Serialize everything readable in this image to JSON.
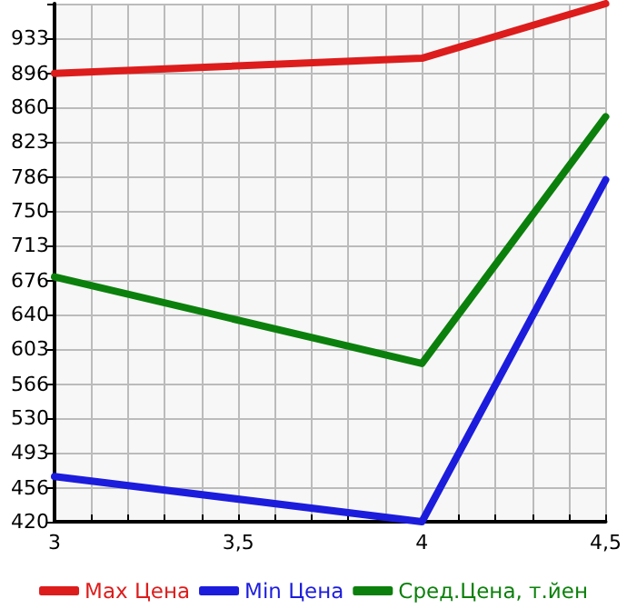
{
  "chart_data": {
    "type": "line",
    "x": [
      3,
      4,
      4.5
    ],
    "series": [
      {
        "name": "Max Цена",
        "color": "#dd1c1c",
        "values": [
          896,
          912,
          970
        ]
      },
      {
        "name": "Min Цена",
        "color": "#1c1cdd",
        "values": [
          468,
          420,
          783
        ]
      },
      {
        "name": "Сред.Цена, т.йен",
        "color": "#0c800c",
        "values": [
          680,
          588,
          850
        ]
      }
    ],
    "xlim": [
      3,
      4.5
    ],
    "xticks": [
      3,
      {
        "value": 3.1,
        "label": null
      },
      {
        "value": 3.2,
        "label": null
      },
      {
        "value": 3.3,
        "label": null
      },
      {
        "value": 3.4,
        "label": null
      },
      {
        "value": 3.5,
        "label": "3,5"
      },
      {
        "value": 3.6,
        "label": null
      },
      {
        "value": 3.7,
        "label": null
      },
      {
        "value": 3.8,
        "label": null
      },
      {
        "value": 3.9,
        "label": null
      },
      4,
      {
        "value": 4.1,
        "label": null
      },
      {
        "value": 4.2,
        "label": null
      },
      {
        "value": 4.3,
        "label": null
      },
      {
        "value": 4.4,
        "label": null
      },
      {
        "value": 4.5,
        "label": "4,5"
      }
    ],
    "ylim": [
      420,
      970
    ],
    "yticks": [
      420,
      456,
      493,
      530,
      566,
      603,
      640,
      676,
      713,
      750,
      786,
      823,
      860,
      896,
      933,
      {
        "value": 970,
        "label": null
      }
    ],
    "grid": true,
    "legend": "bottom",
    "marker": "none",
    "line_style": "solid"
  }
}
